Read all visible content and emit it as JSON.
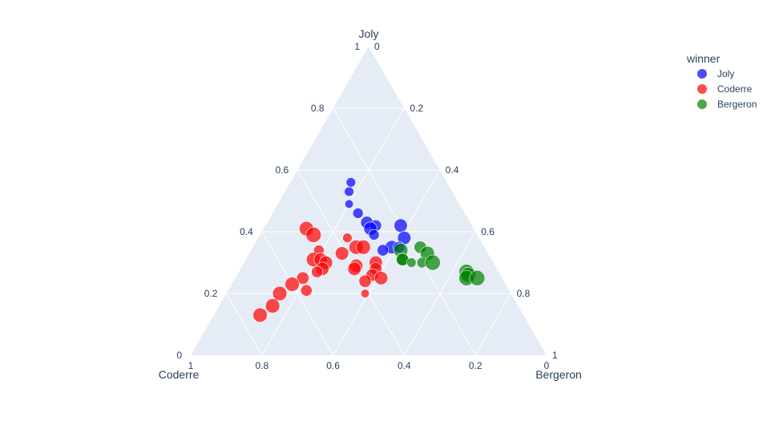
{
  "chart_data": {
    "type": "scatter",
    "subtype": "ternary",
    "axes": {
      "a": "Joly",
      "b": "Coderre",
      "c": "Bergeron"
    },
    "ticks": [
      "0",
      "0.2",
      "0.4",
      "0.6",
      "0.8",
      "1"
    ],
    "legend": {
      "title": "winner",
      "placement": "top-right"
    },
    "grid": true,
    "series": [
      {
        "name": "Joly",
        "color": "#636efa",
        "points": [
          {
            "a": 0.56,
            "b": 0.27,
            "c": 0.17,
            "size": 0.4
          },
          {
            "a": 0.53,
            "b": 0.29,
            "c": 0.18,
            "size": 0.4
          },
          {
            "a": 0.49,
            "b": 0.31,
            "c": 0.2,
            "size": 0.3
          },
          {
            "a": 0.46,
            "b": 0.3,
            "c": 0.24,
            "size": 0.5
          },
          {
            "a": 0.43,
            "b": 0.29,
            "c": 0.28,
            "size": 0.7
          },
          {
            "a": 0.42,
            "b": 0.27,
            "c": 0.31,
            "size": 0.6
          },
          {
            "a": 0.41,
            "b": 0.29,
            "c": 0.3,
            "size": 0.8
          },
          {
            "a": 0.39,
            "b": 0.29,
            "c": 0.32,
            "size": 0.5
          },
          {
            "a": 0.42,
            "b": 0.2,
            "c": 0.38,
            "size": 0.8
          },
          {
            "a": 0.38,
            "b": 0.21,
            "c": 0.41,
            "size": 0.8
          },
          {
            "a": 0.35,
            "b": 0.26,
            "c": 0.39,
            "size": 0.8
          },
          {
            "a": 0.35,
            "b": 0.24,
            "c": 0.41,
            "size": 0.6
          },
          {
            "a": 0.34,
            "b": 0.29,
            "c": 0.37,
            "size": 0.6
          }
        ]
      },
      {
        "name": "Coderre",
        "color": "#ef553b",
        "points": [
          {
            "a": 0.41,
            "b": 0.47,
            "c": 0.12,
            "size": 0.9
          },
          {
            "a": 0.39,
            "b": 0.46,
            "c": 0.15,
            "size": 1.0
          },
          {
            "a": 0.38,
            "b": 0.37,
            "c": 0.25,
            "size": 0.4
          },
          {
            "a": 0.35,
            "b": 0.36,
            "c": 0.29,
            "size": 0.9
          },
          {
            "a": 0.33,
            "b": 0.41,
            "c": 0.26,
            "size": 0.8
          },
          {
            "a": 0.35,
            "b": 0.34,
            "c": 0.31,
            "size": 0.9
          },
          {
            "a": 0.34,
            "b": 0.47,
            "c": 0.19,
            "size": 0.5
          },
          {
            "a": 0.31,
            "b": 0.5,
            "c": 0.19,
            "size": 0.9
          },
          {
            "a": 0.31,
            "b": 0.48,
            "c": 0.21,
            "size": 0.8
          },
          {
            "a": 0.3,
            "b": 0.47,
            "c": 0.23,
            "size": 0.8
          },
          {
            "a": 0.28,
            "b": 0.49,
            "c": 0.23,
            "size": 0.8
          },
          {
            "a": 0.27,
            "b": 0.51,
            "c": 0.22,
            "size": 0.6
          },
          {
            "a": 0.29,
            "b": 0.39,
            "c": 0.32,
            "size": 0.8
          },
          {
            "a": 0.28,
            "b": 0.4,
            "c": 0.32,
            "size": 0.8
          },
          {
            "a": 0.3,
            "b": 0.33,
            "c": 0.37,
            "size": 0.8
          },
          {
            "a": 0.28,
            "b": 0.34,
            "c": 0.38,
            "size": 0.7
          },
          {
            "a": 0.26,
            "b": 0.36,
            "c": 0.38,
            "size": 0.7
          },
          {
            "a": 0.25,
            "b": 0.34,
            "c": 0.41,
            "size": 0.8
          },
          {
            "a": 0.24,
            "b": 0.39,
            "c": 0.37,
            "size": 0.7
          },
          {
            "a": 0.25,
            "b": 0.56,
            "c": 0.19,
            "size": 0.7
          },
          {
            "a": 0.23,
            "b": 0.6,
            "c": 0.17,
            "size": 0.9
          },
          {
            "a": 0.21,
            "b": 0.57,
            "c": 0.22,
            "size": 0.6
          },
          {
            "a": 0.2,
            "b": 0.65,
            "c": 0.15,
            "size": 0.9
          },
          {
            "a": 0.16,
            "b": 0.69,
            "c": 0.15,
            "size": 0.9
          },
          {
            "a": 0.13,
            "b": 0.74,
            "c": 0.13,
            "size": 0.9
          },
          {
            "a": 0.2,
            "b": 0.41,
            "c": 0.39,
            "size": 0.3
          }
        ]
      },
      {
        "name": "Bergeron",
        "color": "#00cc96",
        "points": [
          {
            "a": 0.35,
            "b": 0.18,
            "c": 0.47,
            "size": 0.7
          },
          {
            "a": 0.34,
            "b": 0.24,
            "c": 0.42,
            "size": 0.9
          },
          {
            "a": 0.33,
            "b": 0.17,
            "c": 0.5,
            "size": 0.9
          },
          {
            "a": 0.31,
            "b": 0.25,
            "c": 0.44,
            "size": 0.7
          },
          {
            "a": 0.31,
            "b": 0.25,
            "c": 0.44,
            "size": 0.7
          },
          {
            "a": 0.3,
            "b": 0.23,
            "c": 0.47,
            "size": 0.4
          },
          {
            "a": 0.3,
            "b": 0.2,
            "c": 0.5,
            "size": 0.5
          },
          {
            "a": 0.3,
            "b": 0.17,
            "c": 0.53,
            "size": 1.0
          },
          {
            "a": 0.27,
            "b": 0.09,
            "c": 0.64,
            "size": 1.0
          },
          {
            "a": 0.26,
            "b": 0.09,
            "c": 0.65,
            "size": 1.0
          },
          {
            "a": 0.25,
            "b": 0.1,
            "c": 0.65,
            "size": 1.0
          },
          {
            "a": 0.25,
            "b": 0.07,
            "c": 0.68,
            "size": 1.0
          }
        ]
      }
    ]
  },
  "chart_colors": {
    "Joly": "#0000ff",
    "Coderre": "#ff0000",
    "Bergeron": "#008000",
    "background": "#e5ecf6",
    "grid": "#ffffff",
    "text": "#2a3f5f"
  }
}
